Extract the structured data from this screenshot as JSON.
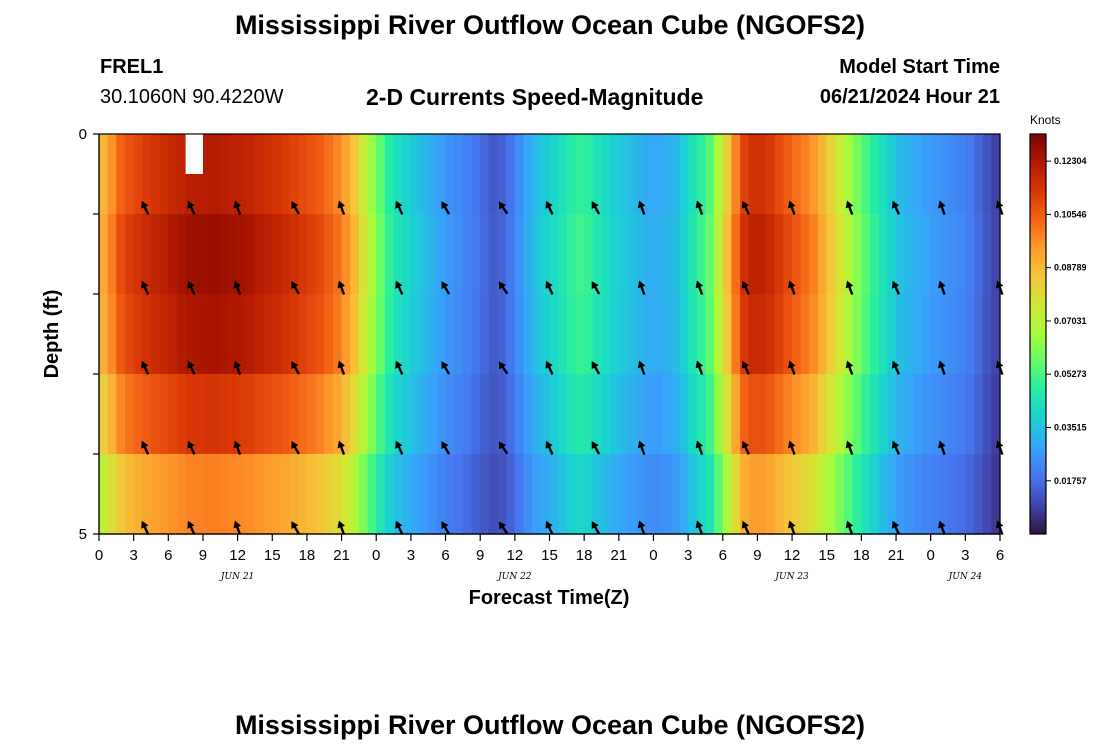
{
  "header": {
    "title": "Mississippi River Outflow Ocean Cube (NGOFS2)",
    "station_id": "FREL1",
    "coordinates": "30.1060N  90.4220W",
    "subtitle": "2-D Currents Speed-Magnitude",
    "model_start_label": "Model Start Time",
    "model_start_value": "06/21/2024 Hour 21"
  },
  "footer": {
    "repeat_title": "Mississippi River Outflow Ocean Cube (NGOFS2)"
  },
  "colors": {
    "colormap": [
      "#30123b",
      "#4145ab",
      "#4675ed",
      "#39a2fc",
      "#1bcfd4",
      "#24eca6",
      "#61fc6c",
      "#a4fc3b",
      "#d1e834",
      "#f3c63a",
      "#fe9b2d",
      "#f36315",
      "#d93806",
      "#b11901",
      "#7a0402"
    ],
    "vector": "#000000",
    "axis": "#000000"
  },
  "chart_data": {
    "type": "heatmap",
    "title": "2-D Currents Speed-Magnitude",
    "xlabel": "Forecast Time(Z)",
    "ylabel": "Depth (ft)",
    "ylim": [
      0,
      5
    ],
    "y_tick_labels": [
      "0",
      "5"
    ],
    "x_hours_range": [
      0,
      78
    ],
    "x_tick_hours": [
      0,
      3,
      6,
      9,
      12,
      15,
      18,
      21,
      24,
      27,
      30,
      33,
      36,
      39,
      42,
      45,
      48,
      51,
      54,
      57,
      60,
      63,
      66,
      69,
      72,
      75,
      78
    ],
    "x_tick_labels": [
      "0",
      "3",
      "6",
      "9",
      "12",
      "15",
      "18",
      "21",
      "0",
      "3",
      "6",
      "9",
      "12",
      "15",
      "18",
      "21",
      "0",
      "3",
      "6",
      "9",
      "12",
      "15",
      "18",
      "21",
      "0",
      "3",
      "6"
    ],
    "date_labels": [
      {
        "text": "JUN 21",
        "hour": 12
      },
      {
        "text": "JUN 22",
        "hour": 36
      },
      {
        "text": "JUN 23",
        "hour": 60
      },
      {
        "text": "JUN 24",
        "hour": 75
      }
    ],
    "colorbar": {
      "unit": "Knots",
      "min": 0.0,
      "max": 0.132,
      "tick_values": [
        0.12304,
        0.10546,
        0.08789,
        0.07031,
        0.05273,
        0.03515,
        0.01757
      ],
      "tick_labels": [
        "0.12304",
        "0.10546",
        "0.08789",
        "0.07031",
        "0.05273",
        "0.03515",
        "0.01757"
      ]
    },
    "speed_profile_knots_by_hour": [
      [
        0,
        0.088
      ],
      [
        1,
        0.098
      ],
      [
        2,
        0.11
      ],
      [
        4,
        0.117
      ],
      [
        6,
        0.122
      ],
      [
        8,
        0.126
      ],
      [
        10,
        0.127
      ],
      [
        13,
        0.124
      ],
      [
        16,
        0.118
      ],
      [
        19,
        0.11
      ],
      [
        21,
        0.1
      ],
      [
        22,
        0.09
      ],
      [
        23,
        0.075
      ],
      [
        24,
        0.062
      ],
      [
        25,
        0.05
      ],
      [
        26,
        0.043
      ],
      [
        28,
        0.035
      ],
      [
        30,
        0.027
      ],
      [
        32,
        0.022
      ],
      [
        33,
        0.018
      ],
      [
        34,
        0.014
      ],
      [
        35,
        0.016
      ],
      [
        36,
        0.022
      ],
      [
        37,
        0.03
      ],
      [
        38,
        0.036
      ],
      [
        40,
        0.044
      ],
      [
        41,
        0.05
      ],
      [
        42,
        0.052
      ],
      [
        43,
        0.046
      ],
      [
        45,
        0.038
      ],
      [
        48,
        0.03
      ],
      [
        50,
        0.034
      ],
      [
        51,
        0.042
      ],
      [
        52,
        0.05
      ],
      [
        53,
        0.058
      ],
      [
        54,
        0.078
      ],
      [
        55,
        0.1
      ],
      [
        56,
        0.118
      ],
      [
        57,
        0.121
      ],
      [
        58,
        0.118
      ],
      [
        60,
        0.108
      ],
      [
        62,
        0.098
      ],
      [
        63,
        0.088
      ],
      [
        64,
        0.078
      ],
      [
        65,
        0.068
      ],
      [
        66,
        0.058
      ],
      [
        67,
        0.05
      ],
      [
        68,
        0.043
      ],
      [
        69,
        0.036
      ],
      [
        71,
        0.03
      ],
      [
        73,
        0.026
      ],
      [
        75,
        0.022
      ],
      [
        76,
        0.018
      ],
      [
        77,
        0.012
      ],
      [
        78,
        0.008
      ]
    ],
    "depth_rows_ft": [
      0.5,
      1.5,
      2.5,
      3.5,
      4.5
    ],
    "depth_row_factors": [
      0.96,
      1.0,
      0.98,
      0.9,
      0.78
    ],
    "vector_hours": [
      4,
      8,
      12,
      17,
      21,
      26,
      30,
      35,
      39,
      43,
      47,
      52,
      56,
      60,
      65,
      69,
      73,
      78
    ],
    "vector_depths_ft": [
      1,
      2,
      3,
      4,
      5
    ],
    "vector_direction_deg": [
      -25,
      -25,
      -20,
      -30,
      -20,
      -25,
      -30,
      -35,
      -25,
      -30,
      -20,
      -20,
      -25,
      -20,
      -20,
      -25,
      -20,
      -20
    ],
    "missing_cells": [
      {
        "hour_start": 7.5,
        "hour_end": 9.0,
        "depth_start": 0,
        "depth_end": 0.5
      }
    ]
  }
}
